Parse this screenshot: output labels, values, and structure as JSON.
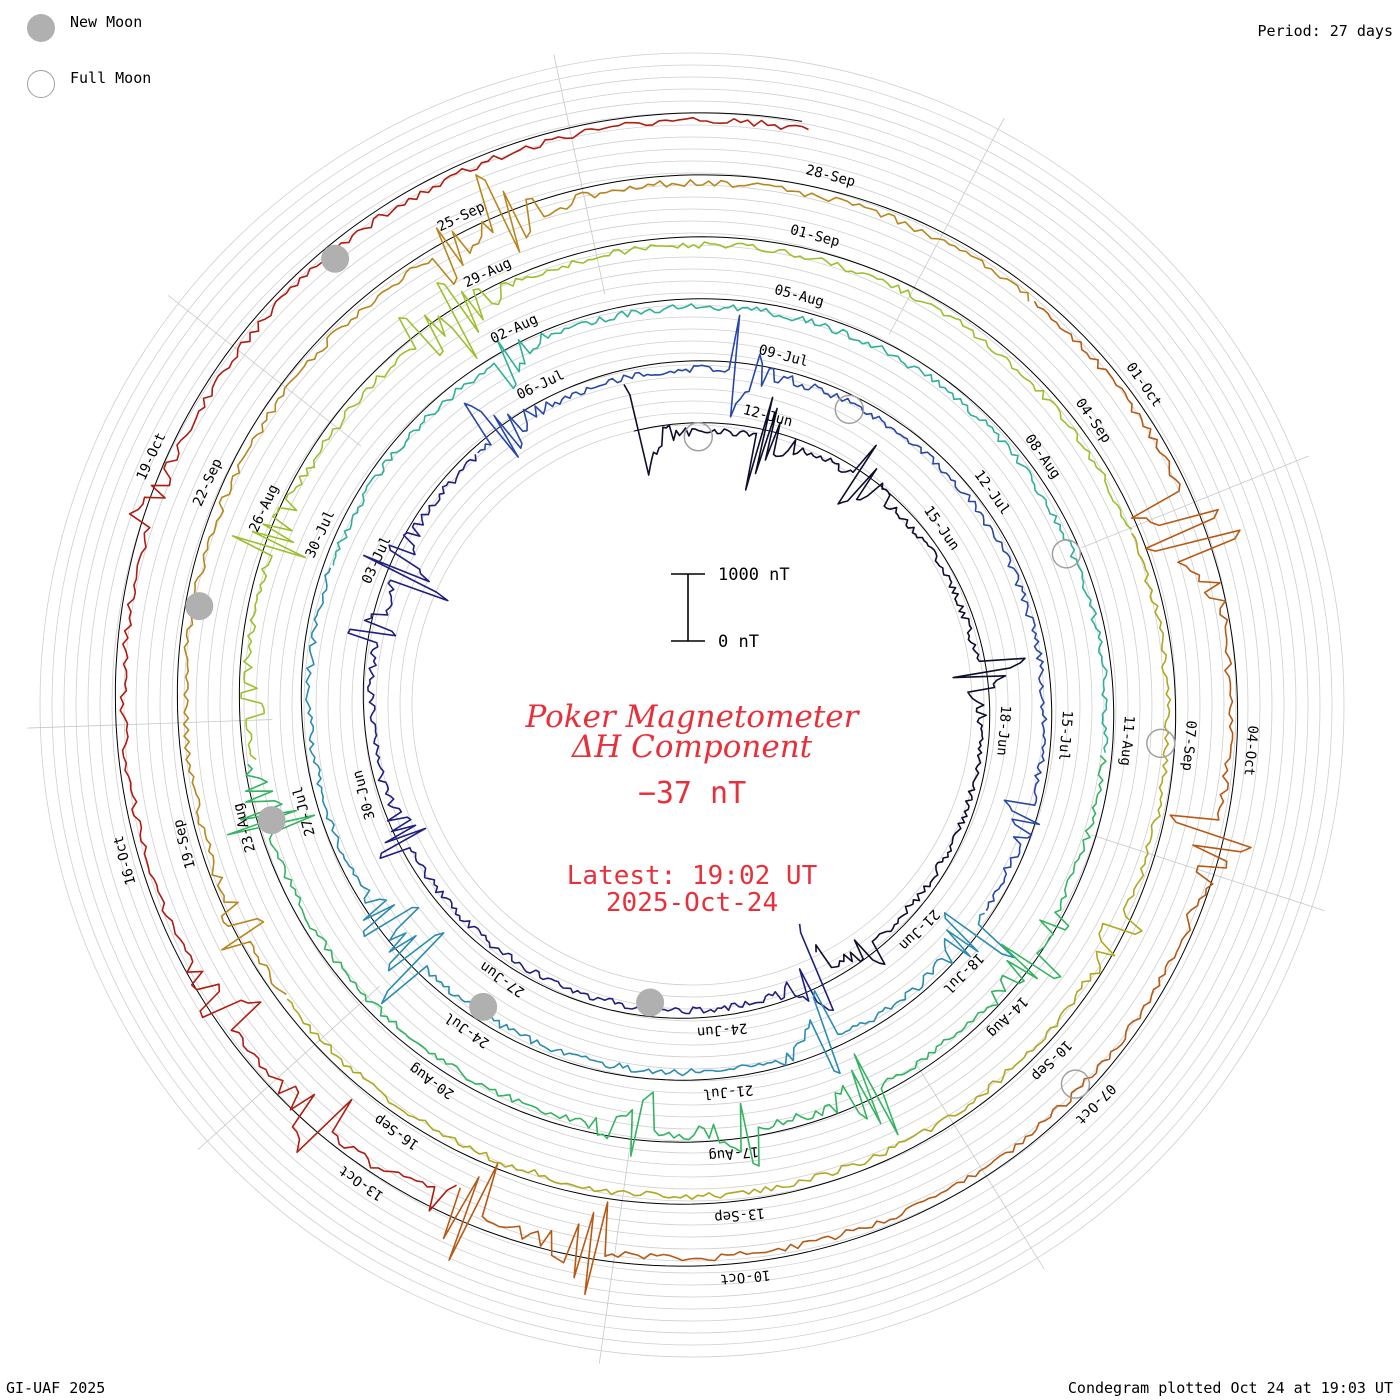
{
  "legend": {
    "new_moon": "New Moon",
    "full_moon": "Full Moon",
    "new_moon_color": "#b0b0b0",
    "full_moon_color": "#a0a0a0"
  },
  "period_label": "Period: 27 days",
  "credit": "GI-UAF 2025",
  "plotted": "Condegram plotted Oct 24 at 19:03 UT",
  "center": {
    "title_line1": "Poker Magnetometer",
    "title_line2": "ΔH Component",
    "current_value": "−37 nT",
    "latest_line1": "Latest: 19:02 UT",
    "latest_line2": "2025-Oct-24"
  },
  "scale_bar": {
    "top_label": "1000 nT",
    "bottom_label": "0 nT"
  },
  "chart_data": {
    "type": "line",
    "projection": "spiral condegram (polar, one revolution per period)",
    "period_days": 27,
    "start_date": "2025-06-10",
    "end": "2025-10-24 19:02 UT",
    "value_units": "nT",
    "scale_reference_nT": [
      0,
      1000
    ],
    "date_labels": [
      "12-Jun",
      "15-Jun",
      "18-Jun",
      "21-Jun",
      "24-Jun",
      "27-Jun",
      "30-Jun",
      "03-Jul",
      "06-Jul",
      "09-Jul",
      "12-Jul",
      "15-Jul",
      "18-Jul",
      "21-Jul",
      "24-Jul",
      "27-Jul",
      "30-Jul",
      "02-Aug",
      "05-Aug",
      "08-Aug",
      "11-Aug",
      "14-Aug",
      "17-Aug",
      "20-Aug",
      "23-Aug",
      "26-Aug",
      "29-Aug",
      "01-Sep",
      "04-Sep",
      "07-Sep",
      "10-Sep",
      "13-Sep",
      "16-Sep",
      "19-Sep",
      "22-Sep",
      "25-Sep",
      "28-Sep",
      "01-Oct",
      "04-Oct",
      "07-Oct",
      "10-Oct",
      "13-Oct",
      "16-Oct",
      "19-Oct"
    ],
    "series_colors": [
      "#0d0d2e",
      "#1f1f80",
      "#2848a8",
      "#2a8cb0",
      "#2fb09a",
      "#34b460",
      "#9cc02c",
      "#b0a820",
      "#b8861c",
      "#b85a14",
      "#b01c10"
    ],
    "new_moon_dates": [
      "2025-06-25",
      "2025-07-24",
      "2025-08-23",
      "2025-09-21",
      "2025-10-21"
    ],
    "full_moon_dates": [
      "2025-06-11",
      "2025-07-10",
      "2025-08-09",
      "2025-09-07",
      "2025-10-07"
    ],
    "grid": true,
    "legend_position": "top-left"
  }
}
